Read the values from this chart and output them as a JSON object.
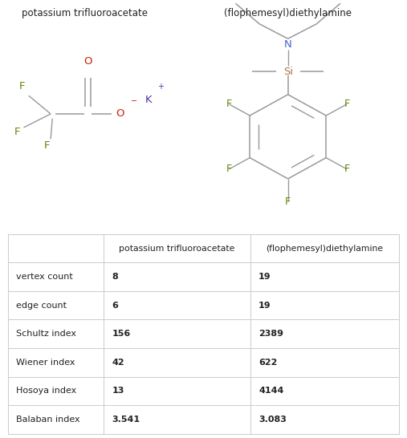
{
  "col1_header": "potassium trifluoroacetate",
  "col2_header": "(flophemesyl)diethylamine",
  "title_row": [
    "",
    "potassium trifluoroacetate",
    "(flophemesyl)diethylamine"
  ],
  "rows": [
    [
      "vertex count",
      "8",
      "19"
    ],
    [
      "edge count",
      "6",
      "19"
    ],
    [
      "Schultz index",
      "156",
      "2389"
    ],
    [
      "Wiener index",
      "42",
      "622"
    ],
    [
      "Hosoya index",
      "13",
      "4144"
    ],
    [
      "Balaban index",
      "3.541",
      "3.083"
    ]
  ],
  "background_color": "#ffffff",
  "border_color": "#cccccc",
  "text_color": "#222222",
  "fig_width": 5.07,
  "fig_height": 5.46,
  "bond_color": "#999999",
  "f_color": "#5a8a00",
  "o_color": "#cc2200",
  "k_color": "#5533aa",
  "n_color": "#4466cc",
  "si_color": "#aa7744"
}
